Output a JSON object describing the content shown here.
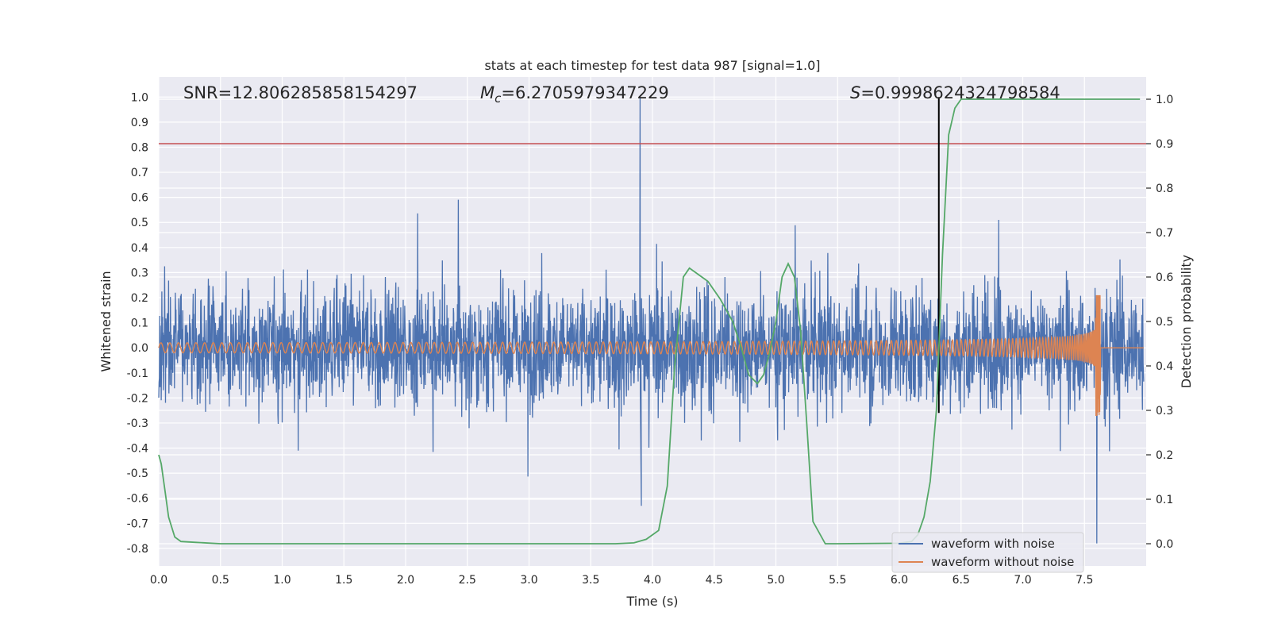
{
  "chart_data": {
    "type": "line",
    "title": "stats at each timestep for test data 987 [signal=1.0]",
    "xlabel": "Time (s)",
    "ylabel": "Whitened strain",
    "y2label": "Detection probability",
    "xlim": [
      0.0,
      8.0
    ],
    "ylim": [
      -0.87,
      1.08
    ],
    "y2lim": [
      -0.05,
      1.05
    ],
    "xticks": [
      "0.0",
      "0.5",
      "1.0",
      "1.5",
      "2.0",
      "2.5",
      "3.0",
      "3.5",
      "4.0",
      "4.5",
      "5.0",
      "5.5",
      "6.0",
      "6.5",
      "7.0",
      "7.5"
    ],
    "yticks": [
      "1.0",
      "0.9",
      "0.8",
      "0.7",
      "0.6",
      "0.5",
      "0.4",
      "0.3",
      "0.2",
      "0.1",
      "0.0",
      "-0.1",
      "-0.2",
      "-0.3",
      "-0.4",
      "-0.5",
      "-0.6",
      "-0.7",
      "-0.8"
    ],
    "y2ticks": [
      "1.0",
      "0.9",
      "0.8",
      "0.7",
      "0.6",
      "0.5",
      "0.4",
      "0.3",
      "0.2",
      "0.1",
      "0.0"
    ],
    "grid": true,
    "legend_position": "lower-right",
    "annotations": {
      "snr": "SNR=12.806285858154297",
      "mc_symbol": "M",
      "mc_sub": "c",
      "mc_value": "=6.2705979347229",
      "s_symbol": "S",
      "s_value": "=0.9998624324798584"
    },
    "threshold_line": {
      "y2": 0.9,
      "color": "#c44e52"
    },
    "marker_line": {
      "x": 6.32,
      "color": "#000000"
    },
    "series": [
      {
        "name": "waveform with noise",
        "color": "#4c72b0",
        "axis": "left",
        "description_values": {
          "max": 1.0,
          "min": -0.79,
          "typical_amplitude": 0.3
        }
      },
      {
        "name": "waveform without noise",
        "color": "#dd8452",
        "axis": "left",
        "chirp": {
          "start_amplitude": 0.02,
          "peak_time": 7.6,
          "peak_max": 0.21,
          "peak_min": -0.33,
          "end_time": 7.63
        }
      },
      {
        "name": "detection probability",
        "color": "#55a868",
        "axis": "right",
        "x": [
          0.0,
          0.02,
          0.05,
          0.08,
          0.13,
          0.18,
          0.3,
          0.5,
          1.0,
          2.0,
          3.0,
          3.7,
          3.85,
          3.95,
          4.05,
          4.12,
          4.18,
          4.25,
          4.3,
          4.35,
          4.45,
          4.55,
          4.65,
          4.72,
          4.78,
          4.85,
          4.9,
          4.95,
          5.0,
          5.05,
          5.1,
          5.15,
          5.2,
          5.25,
          5.3,
          5.4,
          5.5,
          6.0,
          6.1,
          6.15,
          6.2,
          6.25,
          6.3,
          6.35,
          6.4,
          6.45,
          6.5,
          6.6,
          7.0,
          7.5,
          7.95
        ],
        "y": [
          0.2,
          0.18,
          0.12,
          0.06,
          0.015,
          0.005,
          0.003,
          0.0,
          0.0,
          0.0,
          0.0,
          0.0,
          0.002,
          0.01,
          0.03,
          0.13,
          0.4,
          0.6,
          0.62,
          0.61,
          0.59,
          0.55,
          0.5,
          0.44,
          0.38,
          0.36,
          0.38,
          0.43,
          0.5,
          0.6,
          0.63,
          0.6,
          0.48,
          0.27,
          0.05,
          0.0,
          0.0,
          0.001,
          0.005,
          0.02,
          0.06,
          0.14,
          0.3,
          0.65,
          0.92,
          0.98,
          1.0,
          1.0,
          1.0,
          1.0,
          1.0
        ]
      }
    ]
  }
}
